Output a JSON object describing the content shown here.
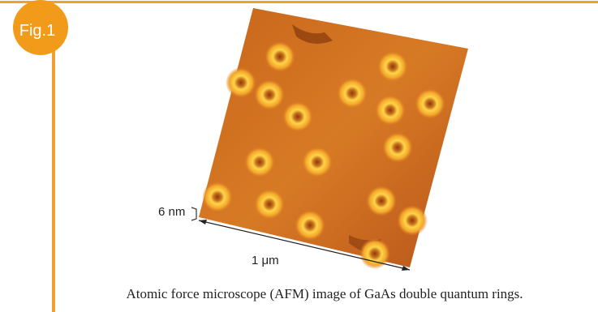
{
  "figure": {
    "badge": "Fig.1",
    "height_label": "6 nm",
    "width_label": "1 μm",
    "caption": "Atomic force microscope (AFM) image of GaAs double quantum rings."
  }
}
